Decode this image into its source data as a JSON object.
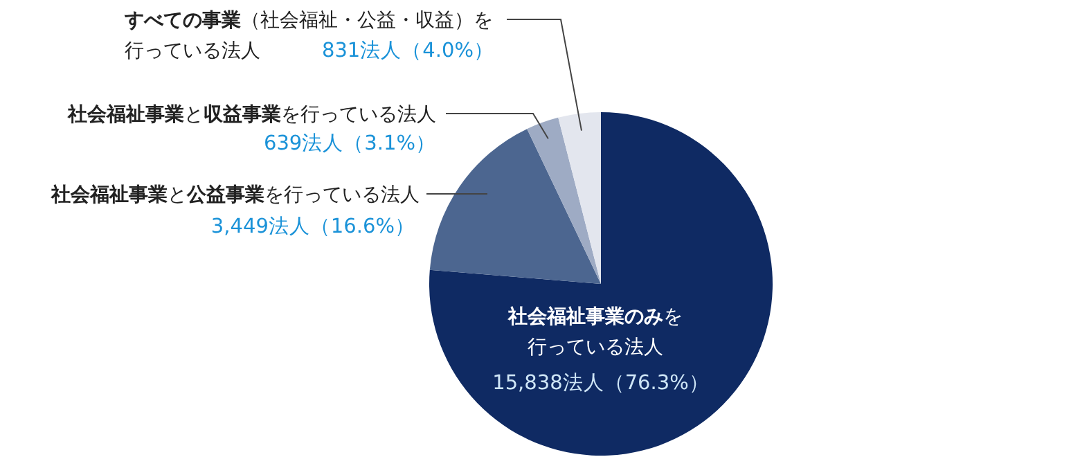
{
  "chart_data": {
    "type": "pie",
    "categories": [
      "**社会福祉事業のみ**を行っている法人",
      "**社会福祉事業**と**公益事業**を行っている法人",
      "**社会福祉事業**と**収益事業**を行っている法人",
      "**すべての事業**（社会福祉・公益・収益）を行っている法人"
    ],
    "values": [
      15838,
      3449,
      639,
      831
    ],
    "value_labels": [
      "15,838法人（76.3%）",
      "3,449法人（16.6%）",
      "639法人（3.1%）",
      "831法人（4.0%）"
    ],
    "colors": [
      "#0f2a63",
      "#4c6690",
      "#9eabc4",
      "#e3e6ee"
    ]
  }
}
